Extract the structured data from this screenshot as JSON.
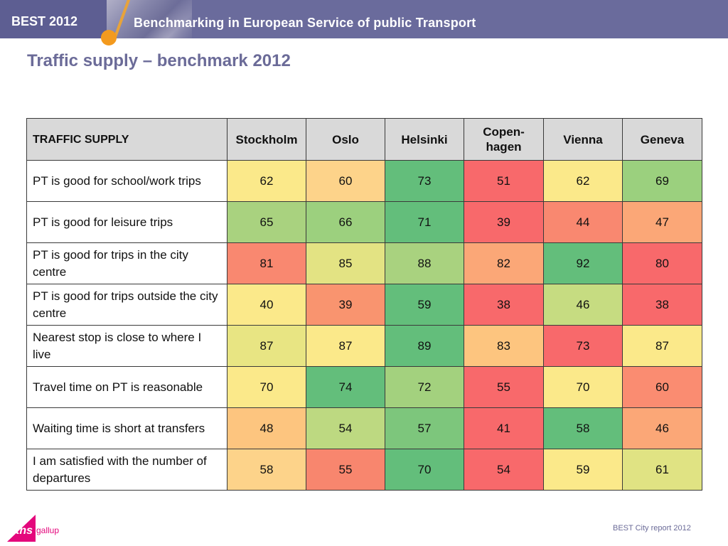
{
  "header": {
    "badge": "BEST 2012",
    "title": "Benchmarking in European Service of public Transport"
  },
  "page_title": "Traffic supply – benchmark 2012",
  "table": {
    "corner": "TRAFFIC SUPPLY",
    "columns": [
      "Stockholm",
      "Oslo",
      "Helsinki",
      "Copen-\nhagen",
      "Vienna",
      "Geneva"
    ],
    "rows": [
      {
        "label": "PT is good for school/work trips",
        "values": [
          "62",
          "60",
          "73",
          "51",
          "62",
          "69"
        ],
        "colors": [
          "#fbe98a",
          "#fdd38a",
          "#63be7b",
          "#f8696b",
          "#fbe98a",
          "#9bd07e"
        ]
      },
      {
        "label": "PT is good for leisure trips",
        "values": [
          "65",
          "66",
          "71",
          "39",
          "44",
          "47"
        ],
        "colors": [
          "#a9d27f",
          "#9cd07e",
          "#63be7b",
          "#f8696b",
          "#f98870",
          "#fba777"
        ]
      },
      {
        "label": "PT is good for trips in the city centre",
        "values": [
          "81",
          "85",
          "88",
          "82",
          "92",
          "80"
        ],
        "colors": [
          "#f98870",
          "#e3e383",
          "#a9d27f",
          "#fba777",
          "#63be7b",
          "#f8696b"
        ]
      },
      {
        "label": "PT is good for trips outside the city centre",
        "values": [
          "40",
          "39",
          "59",
          "38",
          "46",
          "38"
        ],
        "colors": [
          "#fbe98a",
          "#f9946f",
          "#63be7b",
          "#f8696b",
          "#c6dc81",
          "#f8696b"
        ]
      },
      {
        "label": "Nearest stop is close to where I live",
        "values": [
          "87",
          "87",
          "89",
          "83",
          "73",
          "87"
        ],
        "colors": [
          "#e8e583",
          "#fbe98a",
          "#63be7b",
          "#fdc57f",
          "#f8696b",
          "#fbe98a"
        ]
      },
      {
        "label": "Travel time on PT is reasonable",
        "values": [
          "70",
          "74",
          "72",
          "55",
          "70",
          "60"
        ],
        "colors": [
          "#fbe98a",
          "#63be7b",
          "#a3d17e",
          "#f8696b",
          "#fbe98a",
          "#fa8c71"
        ]
      },
      {
        "label": "Waiting time is short at transfers",
        "values": [
          "48",
          "54",
          "57",
          "41",
          "58",
          "46"
        ],
        "colors": [
          "#fdc57f",
          "#bdd981",
          "#7dc67c",
          "#f8696b",
          "#63be7b",
          "#fba777"
        ]
      },
      {
        "label": "I am satisfied with the number of departures",
        "values": [
          "58",
          "55",
          "70",
          "54",
          "59",
          "61"
        ],
        "colors": [
          "#fdd38a",
          "#f8866e",
          "#63be7b",
          "#f8696b",
          "#fbe98a",
          "#e0e383"
        ]
      }
    ]
  },
  "footer": {
    "logo_text": "tns",
    "logo_sub": "gallup",
    "report": "BEST City report 2012"
  }
}
